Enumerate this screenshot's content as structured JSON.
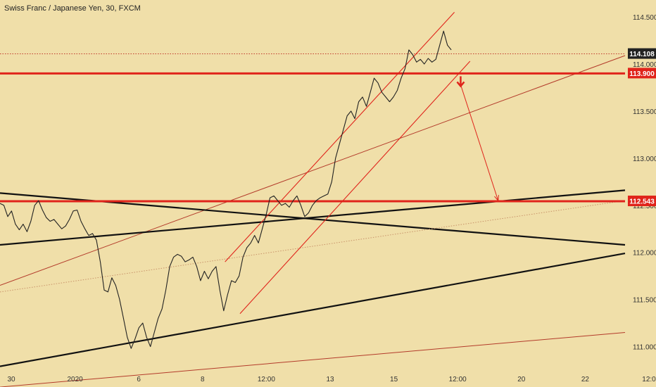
{
  "chart_data": {
    "type": "line",
    "title": "Swiss Franc / Japanese Yen, 30, FXCM",
    "xlabel": "",
    "ylabel": "",
    "x_ticks": [
      "30",
      "2020",
      "6",
      "8",
      "12:00",
      "13",
      "15",
      "12:00",
      "20",
      "22",
      "12:0"
    ],
    "y_ticks": [
      "111.000",
      "111.500",
      "112.000",
      "112.500",
      "113.000",
      "113.500",
      "114.000",
      "114.500"
    ],
    "ylim": [
      110.78,
      114.68
    ],
    "grid": false,
    "colors": {
      "background": "#f0dfa9",
      "price_line": "#222222",
      "red": "#e0241b",
      "dark_red": "#b33a2a",
      "black": "#111111",
      "label_text": "#ffffff"
    },
    "series": [
      {
        "values": [
          112.52,
          112.5,
          112.38,
          112.44,
          112.3,
          112.24,
          112.3,
          112.22,
          112.33,
          112.5,
          112.55,
          112.45,
          112.37,
          112.33,
          112.35,
          112.3,
          112.25,
          112.28,
          112.35,
          112.44,
          112.45,
          112.33,
          112.25,
          112.18,
          112.2,
          112.13,
          111.9,
          111.6,
          111.58,
          111.73,
          111.65,
          111.5,
          111.3,
          111.1,
          110.98,
          111.08,
          111.2,
          111.25,
          111.1,
          111.0,
          111.15,
          111.3,
          111.4,
          111.6,
          111.85,
          111.95,
          111.98,
          111.96,
          111.9,
          111.92,
          111.95,
          111.85,
          111.7,
          111.8,
          111.72,
          111.8,
          111.85,
          111.6,
          111.38,
          111.55,
          111.7,
          111.68,
          111.75,
          111.95,
          112.05,
          112.1,
          112.18,
          112.1,
          112.25,
          112.4,
          112.58,
          112.6,
          112.55,
          112.5,
          112.52,
          112.48,
          112.55,
          112.6,
          112.5,
          112.38,
          112.42,
          112.5,
          112.55,
          112.58,
          112.6,
          112.62,
          112.75,
          113.0,
          113.15,
          113.3,
          113.45,
          113.5,
          113.42,
          113.6,
          113.65,
          113.55,
          113.7,
          113.85,
          113.8,
          113.7,
          113.65,
          113.6,
          113.65,
          113.72,
          113.85,
          113.95,
          114.15,
          114.1,
          114.02,
          114.05,
          114.0,
          114.06,
          114.02,
          114.05,
          114.2,
          114.35,
          114.2,
          114.15
        ]
      }
    ],
    "annotations": {
      "price_labels": [
        {
          "text": "114.108",
          "value": 114.108,
          "color": "#222222"
        },
        {
          "text": "113.900",
          "value": 113.9,
          "color": "#e0241b"
        },
        {
          "text": "112.543",
          "value": 112.543,
          "color": "#e0241b"
        }
      ],
      "horizontal_levels": [
        {
          "value": 113.9,
          "color": "#e0241b",
          "width": "thick"
        },
        {
          "value": 112.543,
          "color": "#e0241b",
          "width": "thick"
        }
      ],
      "trend_lines": [
        {
          "x1": 0.0,
          "y1": 111.65,
          "x2": 1.0,
          "y2": 114.09,
          "color": "#b33a2a"
        },
        {
          "x1": 0.0,
          "y1": 110.57,
          "x2": 1.0,
          "y2": 111.15,
          "color": "#b33a2a"
        },
        {
          "x1": 0.0,
          "y1": 112.63,
          "x2": 1.0,
          "y2": 112.08,
          "color": "#111111"
        },
        {
          "x1": 0.0,
          "y1": 112.08,
          "x2": 1.0,
          "y2": 112.66,
          "color": "#111111"
        },
        {
          "x1": 0.0,
          "y1": 110.79,
          "x2": 1.0,
          "y2": 111.99,
          "color": "#111111"
        },
        {
          "x1": 0.0,
          "y1": 111.58,
          "x2": 1.0,
          "y2": 112.55,
          "color": "#c8936a",
          "style": "dotted"
        },
        {
          "x1": 0.0,
          "y1": 114.108,
          "x2": 1.0,
          "y2": 114.108,
          "color": "#c0392b",
          "style": "dotted"
        }
      ],
      "channel": [
        {
          "x1": 0.36,
          "y1": 111.9,
          "x2": 0.727,
          "y2": 114.55
        },
        {
          "x1": 0.384,
          "y1": 111.35,
          "x2": 0.752,
          "y2": 114.03
        }
      ],
      "projection_arrow": {
        "from_x": 0.737,
        "from_y": 113.78,
        "to_x": 0.797,
        "to_y": 112.55,
        "color": "#e0241b"
      },
      "down_arrow": {
        "x": 0.737,
        "y": 113.87,
        "color": "#e0241b"
      }
    }
  }
}
